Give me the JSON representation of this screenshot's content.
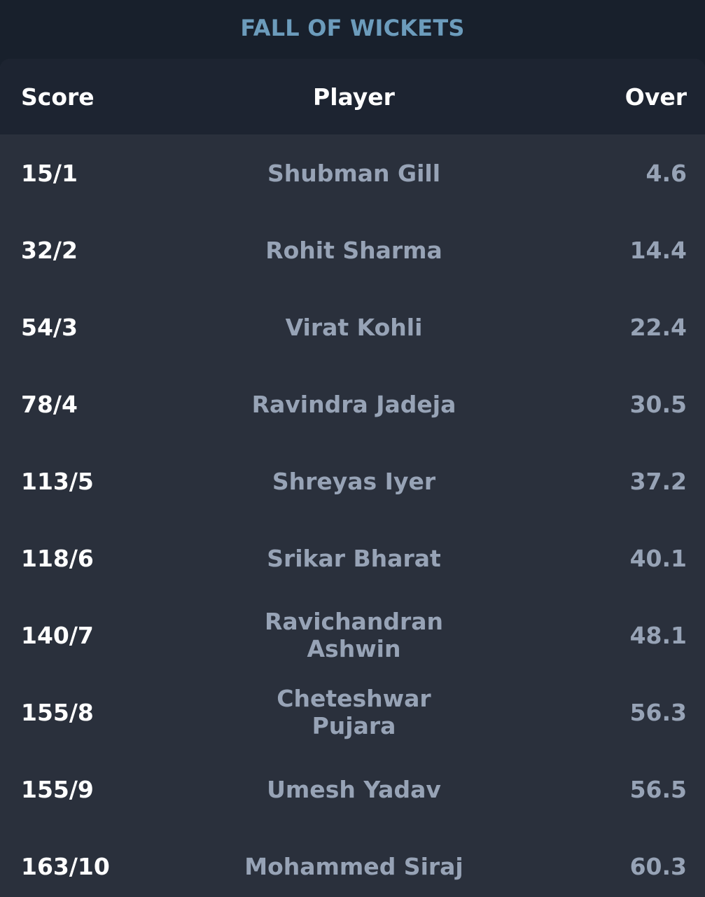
{
  "title": "FALL OF WICKETS",
  "columns": {
    "score": "Score",
    "player": "Player",
    "over": "Over"
  },
  "wickets": [
    {
      "score": "15/1",
      "player": "Shubman Gill",
      "over": "4.6"
    },
    {
      "score": "32/2",
      "player": "Rohit Sharma",
      "over": "14.4"
    },
    {
      "score": "54/3",
      "player": "Virat Kohli",
      "over": "22.4"
    },
    {
      "score": "78/4",
      "player": "Ravindra Jadeja",
      "over": "30.5"
    },
    {
      "score": "113/5",
      "player": "Shreyas Iyer",
      "over": "37.2"
    },
    {
      "score": "118/6",
      "player": "Srikar Bharat",
      "over": "40.1"
    },
    {
      "score": "140/7",
      "player": "Ravichandran Ashwin",
      "over": "48.1"
    },
    {
      "score": "155/8",
      "player": "Cheteshwar Pujara",
      "over": "56.3"
    },
    {
      "score": "155/9",
      "player": "Umesh Yadav",
      "over": "56.5"
    },
    {
      "score": "163/10",
      "player": "Mohammed Siraj",
      "over": "60.3"
    }
  ],
  "colors": {
    "background": "#18202c",
    "panel": "#2a303c",
    "header": "#1d2431",
    "title": "#6c9cbc",
    "primary_text": "#ffffff",
    "secondary_text": "#97a3b6"
  }
}
